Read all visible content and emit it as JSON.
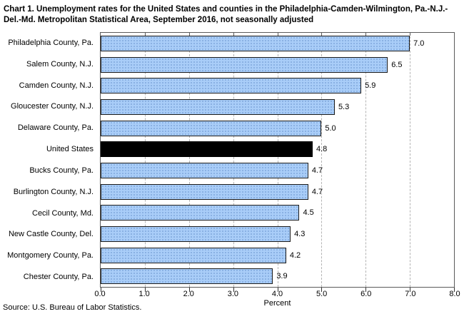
{
  "title": "Chart 1. Unemployment rates for the United States and counties in the Philadelphia-Camden-Wilmington, Pa.-N.J.-Del.-Md. Metropolitan Statistical Area, September 2016, not seasonally adjusted",
  "source": "Source: U.S. Bureau of Labor Statistics.",
  "chart_data": {
    "type": "bar",
    "orientation": "horizontal",
    "title": "Chart 1. Unemployment rates for the United States and counties in the Philadelphia-Camden-Wilmington, Pa.-N.J.-Del.-Md. Metropolitan Statistical Area, September 2016, not seasonally adjusted",
    "categories": [
      "Philadelphia County, Pa.",
      "Salem County, N.J.",
      "Camden County, N.J.",
      "Gloucester County, N.J.",
      "Delaware County, Pa.",
      "United States",
      "Bucks County, Pa.",
      "Burlington County, N.J.",
      "Cecil County, Md.",
      "New Castle County, Del.",
      "Montgomery County, Pa.",
      "Chester County, Pa."
    ],
    "values": [
      7.0,
      6.5,
      5.9,
      5.3,
      5.0,
      4.8,
      4.7,
      4.7,
      4.5,
      4.3,
      4.2,
      3.9
    ],
    "value_labels": [
      "7.0",
      "6.5",
      "5.9",
      "5.3",
      "5.0",
      "4.8",
      "4.7",
      "4.7",
      "4.5",
      "4.3",
      "4.2",
      "3.9"
    ],
    "highlight_category": "United States",
    "highlight_index": 5,
    "xlabel": "Percent",
    "xlim": [
      0,
      8
    ],
    "x_ticks": [
      "0.0",
      "1.0",
      "2.0",
      "3.0",
      "4.0",
      "5.0",
      "6.0",
      "7.0",
      "8.0"
    ],
    "grid": true,
    "legend": "none",
    "colors": {
      "bar_fill": "#a9cdf8",
      "bar_dots": "#7fa8dc",
      "bar_border": "#1a1a1a",
      "highlight_fill": "#000000",
      "gridline": "#b4b4b4"
    }
  }
}
